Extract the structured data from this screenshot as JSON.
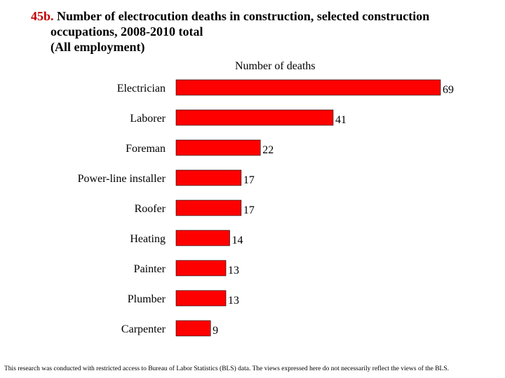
{
  "title": {
    "figure_number": "45b.",
    "line1": "Number of electrocution deaths in construction, selected construction",
    "line2": "occupations, 2008-2010 total",
    "line3": "(All employment)"
  },
  "footnote": "This research was conducted with restricted access to Bureau of Labor Statistics (BLS) data.  The views expressed here do not necessarily reflect the views of the BLS.",
  "colors": {
    "bar": "#ff0000",
    "bar_edge": "#000000"
  },
  "chart_data": {
    "type": "bar",
    "orientation": "horizontal",
    "xlabel": "Number of deaths",
    "ylabel": "",
    "xlim": [
      0,
      69
    ],
    "grid": false,
    "legend": "none",
    "categories": [
      "Electrician",
      "Laborer",
      "Foreman",
      "Power-line installer",
      "Roofer",
      "Heating",
      "Painter",
      "Plumber",
      "Carpenter"
    ],
    "values": [
      69,
      41,
      22,
      17,
      17,
      14,
      13,
      13,
      9
    ],
    "data_labels": [
      "69",
      "41",
      "22",
      "17",
      "17",
      "14",
      "13",
      "13",
      "9"
    ]
  }
}
